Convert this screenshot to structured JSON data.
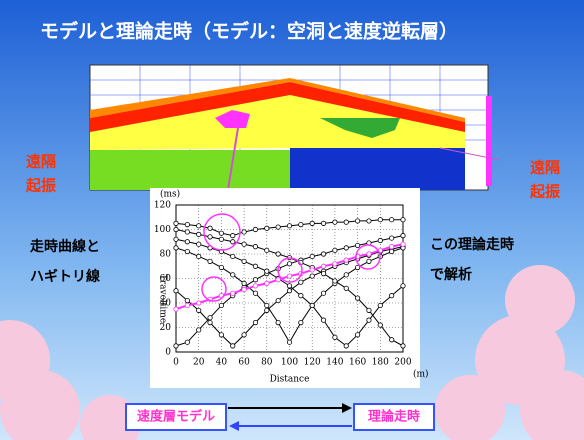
{
  "title": "モデルと理論走時（モデル：空洞と速度逆転層）",
  "left_note": {
    "line1": "遠隔",
    "line2": "起振"
  },
  "right_note": {
    "line1": "遠隔",
    "line2": "起振"
  },
  "left_text": {
    "line1": "走時曲線と",
    "line2": "ハギトリ線"
  },
  "right_text": {
    "line1": "この理論走時",
    "line2": "で解析"
  },
  "flow": {
    "from": "速度層モデル",
    "to": "理論走時"
  },
  "chart_data": {
    "type": "line",
    "xlabel": "Distance",
    "xunit": "(m)",
    "ylabel": "Traveltime",
    "yunit": "(ms)",
    "xlim": [
      0,
      200
    ],
    "ylim": [
      0,
      120
    ],
    "xticks": [
      0,
      20,
      40,
      60,
      80,
      100,
      120,
      140,
      160,
      180,
      200
    ],
    "yticks": [
      0,
      20,
      40,
      60,
      80,
      100,
      120
    ],
    "grid": true,
    "x": [
      0,
      10,
      20,
      30,
      40,
      50,
      60,
      70,
      80,
      90,
      100,
      110,
      120,
      130,
      140,
      150,
      160,
      170,
      180,
      190,
      200
    ],
    "series": [
      {
        "color": "#000000",
        "values": [
          5,
          8,
          18,
          28,
          38,
          46,
          53,
          59,
          64,
          68,
          72,
          75,
          78,
          80,
          83,
          85,
          87,
          89,
          91,
          93,
          95
        ]
      },
      {
        "color": "#000000",
        "values": [
          50,
          42,
          34,
          24,
          14,
          5,
          14,
          24,
          34,
          42,
          50,
          57,
          62,
          66,
          70,
          73,
          76,
          79,
          82,
          84,
          86
        ]
      },
      {
        "color": "#000000",
        "values": [
          85,
          82,
          78,
          74,
          69,
          63,
          56,
          48,
          38,
          24,
          8,
          24,
          38,
          48,
          56,
          63,
          69,
          74,
          78,
          82,
          85
        ]
      },
      {
        "color": "#000000",
        "values": [
          92,
          90,
          88,
          85,
          82,
          78,
          74,
          70,
          66,
          60,
          54,
          46,
          38,
          26,
          12,
          5,
          14,
          26,
          38,
          46,
          54
        ]
      },
      {
        "color": "#000000",
        "values": [
          100,
          98,
          96,
          94,
          92,
          90,
          88,
          86,
          83,
          80,
          77,
          73,
          69,
          64,
          58,
          52,
          44,
          34,
          22,
          10,
          5
        ]
      },
      {
        "color": "#000000",
        "values": [
          105,
          104,
          103,
          101,
          97,
          95,
          98,
          100,
          101,
          102,
          103,
          104,
          105,
          105,
          106,
          106,
          107,
          107,
          108,
          108,
          108
        ]
      },
      {
        "color": "#ff33ff",
        "values": [
          35,
          38,
          40,
          43,
          46,
          48,
          51,
          54,
          56,
          59,
          62,
          64,
          67,
          70,
          72,
          75,
          78,
          80,
          83,
          86,
          88
        ]
      }
    ]
  }
}
